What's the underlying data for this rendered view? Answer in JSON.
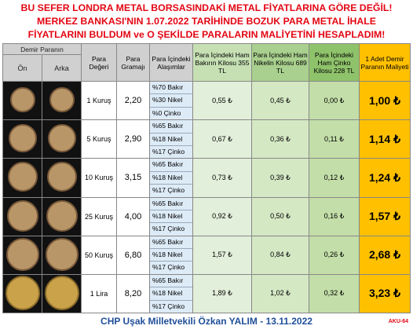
{
  "header": {
    "lines": [
      "BU SEFER LONDRA METAL BORSASINDAKİ METAL FİYATLARINA GÖRE DEĞİL!",
      "MERKEZ BANKASI'NIN 1.07.2022 TARİHİNDE BOZUK PARA METAL İHALE",
      "FİYATLARINI BULDUM ve O ŞEKİLDE PARALARIN MALİYETİNİ HESAPLADIM!"
    ]
  },
  "table": {
    "group_header": "Demir Paranın",
    "sub_headers": [
      "Ön",
      "Arka"
    ],
    "columns": [
      "Para Değeri",
      "Para Gramajı",
      "Para İçindeki Alaşımlar",
      "Para İçindeki Ham Bakırın Kilosu 355 TL",
      "Para İçindeki Ham Nikelin Kilosu 689 TL",
      "Para İçindeki Ham Çinko Kilosu 228 TL",
      "1 Adet Demir Paranın Maliyeti"
    ],
    "rows": [
      {
        "value": "1 Kuruş",
        "weight": "2,20",
        "alloys": [
          "%70 Bakır",
          "%30 Nikel",
          "%0 Çinko"
        ],
        "copper": "0,55 ₺",
        "nickel": "0,45 ₺",
        "zinc": "0,00 ₺",
        "cost": "1,00 ₺"
      },
      {
        "value": "5 Kuruş",
        "weight": "2,90",
        "alloys": [
          "%65 Bakır",
          "%18 Nikel",
          "%17 Çinko"
        ],
        "copper": "0,67 ₺",
        "nickel": "0,36 ₺",
        "zinc": "0,11 ₺",
        "cost": "1,14 ₺"
      },
      {
        "value": "10 Kuruş",
        "weight": "3,15",
        "alloys": [
          "%65 Bakır",
          "%18 Nikel",
          "%17 Çinko"
        ],
        "copper": "0,73 ₺",
        "nickel": "0,39 ₺",
        "zinc": "0,12 ₺",
        "cost": "1,24 ₺"
      },
      {
        "value": "25 Kuruş",
        "weight": "4,00",
        "alloys": [
          "%65 Bakır",
          "%18 Nikel",
          "%17 Çinko"
        ],
        "copper": "0,92 ₺",
        "nickel": "0,50 ₺",
        "zinc": "0,16 ₺",
        "cost": "1,57 ₺"
      },
      {
        "value": "50 Kuruş",
        "weight": "6,80",
        "alloys": [
          "%65 Bakır",
          "%18 Nikel",
          "%17 Çinko"
        ],
        "copper": "1,57 ₺",
        "nickel": "0,84 ₺",
        "zinc": "0,26 ₺",
        "cost": "2,68 ₺"
      },
      {
        "value": "1 Lira",
        "weight": "8,20",
        "alloys": [
          "%65 Bakır",
          "%18 Nikel",
          "%17 Çinko"
        ],
        "copper": "1,89 ₺",
        "nickel": "1,02 ₺",
        "zinc": "0,32 ₺",
        "cost": "3,23 ₺"
      }
    ]
  },
  "footer": {
    "credit": "CHP Uşak Milletvekili Özkan YALIM - 13.11.2022",
    "code": "AKU-64"
  }
}
